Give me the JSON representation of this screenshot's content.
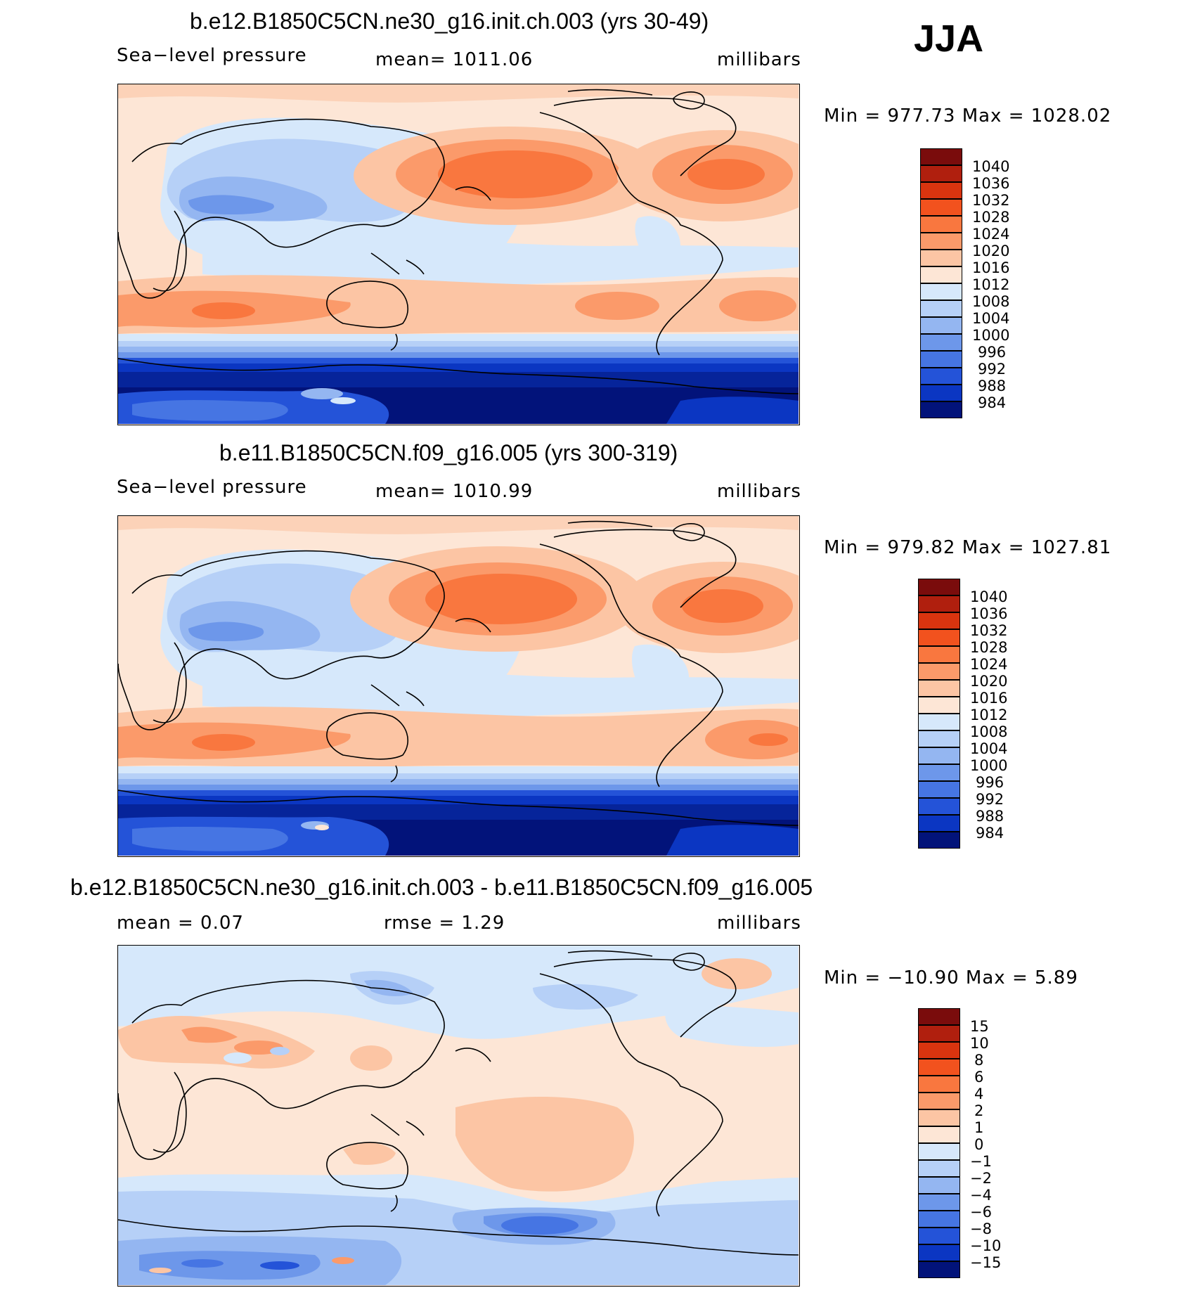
{
  "season": "JJA",
  "panels": [
    {
      "title": "b.e12.B1850C5CN.ne30_g16.init.ch.003 (yrs 30-49)",
      "left_label": "Sea−level pressure",
      "center_label": "mean=  1011.06",
      "units": "millibars",
      "minmax": "Min  =  977.73  Max  =  1028.02",
      "colorbar_labels": [
        "1040",
        "1036",
        "1032",
        "1028",
        "1024",
        "1020",
        "1016",
        "1012",
        "1008",
        "1004",
        "1000",
        "996",
        "992",
        "988",
        "984"
      ],
      "map_description": "Sea-level pressure, CESM ne30 run, JJA climatology"
    },
    {
      "title": "b.e11.B1850C5CN.f09_g16.005 (yrs 300-319)",
      "left_label": "Sea−level pressure",
      "center_label": "mean=  1010.99",
      "units": "millibars",
      "minmax": "Min  =  979.82  Max  =  1027.81",
      "colorbar_labels": [
        "1040",
        "1036",
        "1032",
        "1028",
        "1024",
        "1020",
        "1016",
        "1012",
        "1008",
        "1004",
        "1000",
        "996",
        "992",
        "988",
        "984"
      ],
      "map_description": "Sea-level pressure, CESM f09 run, JJA climatology"
    },
    {
      "title": "b.e12.B1850C5CN.ne30_g16.init.ch.003 - b.e11.B1850C5CN.f09_g16.005",
      "left_label": "mean  =      0.07",
      "center_label": "rmse  =      1.29",
      "units": "millibars",
      "minmax": "Min  =  −10.90  Max  =       5.89",
      "colorbar_labels": [
        "15",
        "10",
        "8",
        "6",
        "4",
        "2",
        "1",
        "0",
        "−1",
        "−2",
        "−4",
        "−6",
        "−8",
        "−10",
        "−15"
      ],
      "map_description": "Difference of sea-level pressure (ne30 minus f09)"
    }
  ],
  "colors": {
    "reds": [
      "#7a0c0c",
      "#b01f0e",
      "#d9340f",
      "#f2521e",
      "#f9773f",
      "#fb9a6a",
      "#fcc5a4",
      "#fde6d6"
    ],
    "blues": [
      "#d6e8fb",
      "#b6d0f7",
      "#94b6f1",
      "#6d97ea",
      "#4675e3",
      "#2453d8",
      "#0b36c2",
      "#06249a",
      "#02137a"
    ],
    "ocean_base": "#fde6d6",
    "coast": "#000000"
  }
}
